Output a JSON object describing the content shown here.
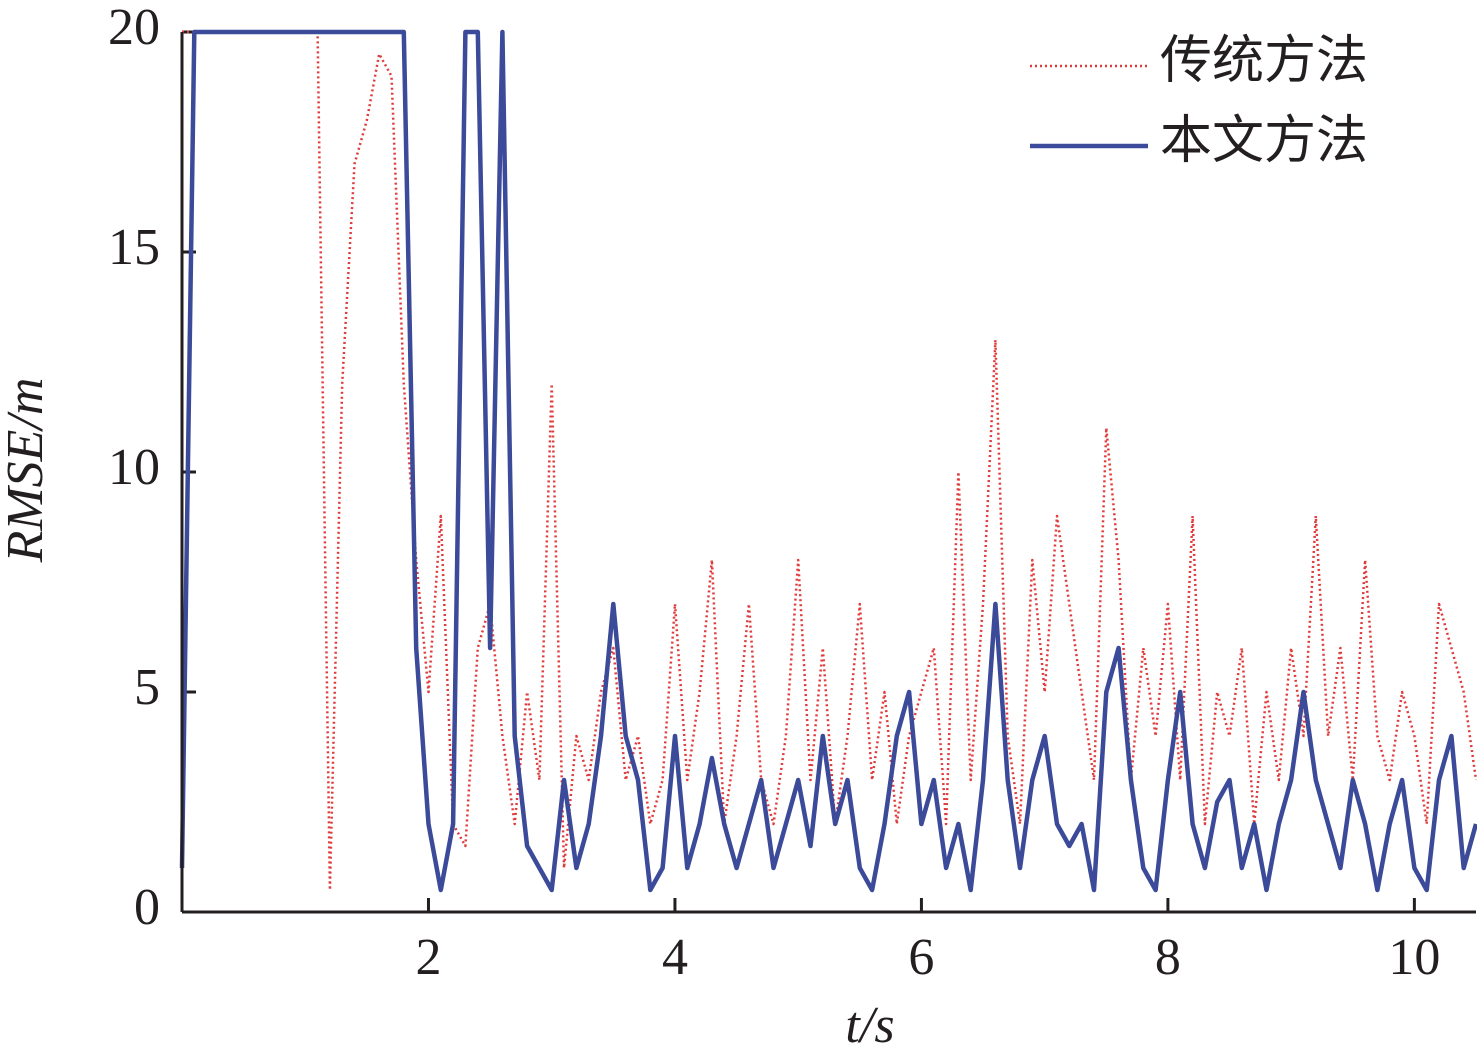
{
  "chart_data": {
    "type": "line",
    "xlabel": "t/s",
    "ylabel": "RMSE/m",
    "xlim": [
      0,
      10.5
    ],
    "ylim": [
      0,
      20
    ],
    "xticks": [
      2,
      4,
      6,
      8,
      10
    ],
    "yticks": [
      0,
      5,
      10,
      15,
      20
    ],
    "legend": "upper right",
    "x": [
      0,
      0.1,
      0.2,
      0.3,
      0.4,
      0.5,
      0.6,
      0.7,
      0.8,
      0.9,
      1,
      1.1,
      1.2,
      1.3,
      1.4,
      1.5,
      1.6,
      1.7,
      1.8,
      1.9,
      2,
      2.1,
      2.2,
      2.3,
      2.4,
      2.5,
      2.6,
      2.7,
      2.8,
      2.9,
      3,
      3.1,
      3.2,
      3.3,
      3.4,
      3.5,
      3.6,
      3.7,
      3.8,
      3.9,
      4,
      4.1,
      4.2,
      4.3,
      4.4,
      4.5,
      4.6,
      4.7,
      4.8,
      4.9,
      5,
      5.1,
      5.2,
      5.3,
      5.4,
      5.5,
      5.6,
      5.7,
      5.8,
      5.9,
      6,
      6.1,
      6.2,
      6.3,
      6.4,
      6.5,
      6.6,
      6.7,
      6.8,
      6.9,
      7,
      7.1,
      7.2,
      7.3,
      7.4,
      7.5,
      7.6,
      7.7,
      7.8,
      7.9,
      8,
      8.1,
      8.2,
      8.3,
      8.4,
      8.5,
      8.6,
      8.7,
      8.8,
      8.9,
      9,
      9.1,
      9.2,
      9.3,
      9.4,
      9.5,
      9.6,
      9.7,
      9.8,
      9.9,
      10,
      10.1,
      10.2,
      10.3,
      10.4,
      10.5
    ],
    "series": [
      {
        "name": "传统方法",
        "color": "#e03a3a",
        "style": "dotted",
        "values": [
          20,
          20,
          20,
          20,
          20,
          20,
          20,
          20,
          20,
          20,
          20,
          20,
          0.5,
          12,
          17,
          18,
          19.5,
          19,
          12,
          8,
          5,
          9,
          2,
          1.5,
          6,
          7,
          4,
          2,
          5,
          3,
          12,
          1,
          4,
          3,
          5,
          6,
          3,
          4,
          2,
          3,
          7,
          3,
          5,
          8,
          2,
          4,
          7,
          3,
          2,
          4,
          8,
          3,
          6,
          2,
          4,
          7,
          3,
          5,
          2,
          4,
          5,
          6,
          2,
          10,
          3,
          7,
          13,
          4,
          2,
          8,
          5,
          9,
          7,
          5,
          3,
          11,
          8,
          3,
          6,
          4,
          7,
          3,
          9,
          2,
          5,
          4,
          6,
          2,
          5,
          3,
          6,
          4,
          9,
          4,
          6,
          3,
          8,
          4,
          3,
          5,
          4,
          2,
          7,
          6,
          5,
          3
        ]
      },
      {
        "name": "本文方法",
        "color": "#3b4a99",
        "style": "solid",
        "values": [
          1,
          20,
          20,
          20,
          20,
          20,
          20,
          20,
          20,
          20,
          20,
          20,
          20,
          20,
          20,
          20,
          20,
          20,
          20,
          6,
          2,
          0.5,
          2,
          20,
          20,
          6,
          20,
          4,
          1.5,
          1,
          0.5,
          3,
          1,
          2,
          4,
          7,
          4,
          3,
          0.5,
          1,
          4,
          1,
          2,
          3.5,
          2,
          1,
          2,
          3,
          1,
          2,
          3,
          1.5,
          4,
          2,
          3,
          1,
          0.5,
          2,
          4,
          5,
          2,
          3,
          1,
          2,
          0.5,
          3,
          7,
          3,
          1,
          3,
          4,
          2,
          1.5,
          2,
          0.5,
          5,
          6,
          3,
          1,
          0.5,
          3,
          5,
          2,
          1,
          2.5,
          3,
          1,
          2,
          0.5,
          2,
          3,
          5,
          3,
          2,
          1,
          3,
          2,
          0.5,
          2,
          3,
          1,
          0.5,
          3,
          4,
          1,
          2
        ]
      }
    ]
  }
}
